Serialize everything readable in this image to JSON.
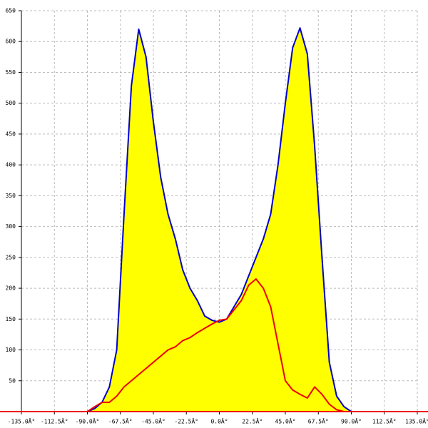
{
  "chart_data": {
    "type": "area",
    "x": [
      -90,
      -85,
      -80,
      -75,
      -70,
      -65,
      -60,
      -55,
      -50,
      -45,
      -40,
      -35,
      -30,
      -25,
      -20,
      -15,
      -10,
      -5,
      0,
      5,
      10,
      15,
      20,
      25,
      30,
      35,
      40,
      45,
      50,
      55,
      60,
      65,
      70,
      75,
      80,
      85,
      90
    ],
    "series": [
      {
        "color": "#0000cc",
        "fill": "#ffff00",
        "values": [
          0,
          5,
          15,
          40,
          100,
          320,
          528,
          620,
          575,
          470,
          380,
          320,
          280,
          230,
          200,
          180,
          155,
          148,
          145,
          150,
          170,
          190,
          220,
          250,
          280,
          320,
          400,
          500,
          590,
          622,
          580,
          430,
          250,
          80,
          25,
          8,
          0
        ]
      },
      {
        "color": "#ee0000",
        "values": [
          0,
          8,
          15,
          15,
          25,
          40,
          50,
          60,
          70,
          80,
          90,
          100,
          105,
          115,
          120,
          128,
          135,
          142,
          148,
          150,
          165,
          180,
          205,
          215,
          200,
          170,
          110,
          50,
          35,
          28,
          22,
          40,
          28,
          12,
          3,
          0,
          0
        ]
      }
    ],
    "xlim": [
      -135,
      135
    ],
    "xticks": [
      {
        "value": -135,
        "label": "-135.0Â°"
      },
      {
        "value": -112.5,
        "label": "-112.5Â°"
      },
      {
        "value": -90,
        "label": "-90.0Â°"
      },
      {
        "value": -67.5,
        "label": "-67.5Â°"
      },
      {
        "value": -45,
        "label": "-45.0Â°"
      },
      {
        "value": -22.5,
        "label": "-22.5Â°"
      },
      {
        "value": 0,
        "label": "0.0Â°"
      },
      {
        "value": 22.5,
        "label": "22.5Â°"
      },
      {
        "value": 45,
        "label": "45.0Â°"
      },
      {
        "value": 67.5,
        "label": "67.5Â°"
      },
      {
        "value": 90,
        "label": "90.0Â°"
      },
      {
        "value": 112.5,
        "label": "112.5Â°"
      },
      {
        "value": 135,
        "label": "135.0Â°"
      }
    ],
    "ylim": [
      0,
      650
    ],
    "yticks": [
      50,
      100,
      150,
      200,
      250,
      300,
      350,
      400,
      450,
      500,
      550,
      600,
      650
    ],
    "grid": true,
    "baseline_color": "#ee0000"
  }
}
